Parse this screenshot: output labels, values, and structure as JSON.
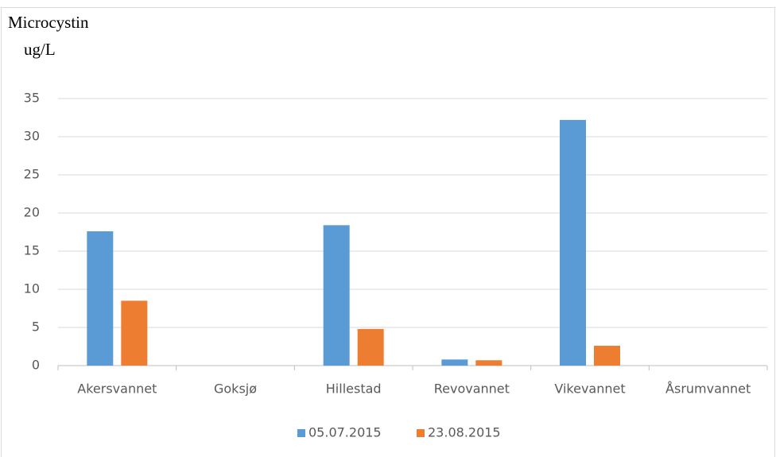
{
  "chart_data": {
    "type": "bar",
    "title": "Microcystin",
    "subtitle": "ug/L",
    "categories": [
      "Akersvannet",
      "Goksjø",
      "Hillestad",
      "Revovannet",
      "Vikevannet",
      "Åsrumvannet"
    ],
    "series": [
      {
        "name": "05.07.2015",
        "color": "#5b9bd5",
        "values": [
          17.6,
          0,
          18.4,
          0.8,
          32.2,
          0
        ]
      },
      {
        "name": "23.08.2015",
        "color": "#ed7d31",
        "values": [
          8.5,
          0,
          4.8,
          0.7,
          2.6,
          0
        ]
      }
    ],
    "ylim": [
      0,
      35
    ],
    "yticks": [
      0,
      5,
      10,
      15,
      20,
      25,
      30,
      35
    ],
    "grid": true,
    "legend": "bottom"
  }
}
